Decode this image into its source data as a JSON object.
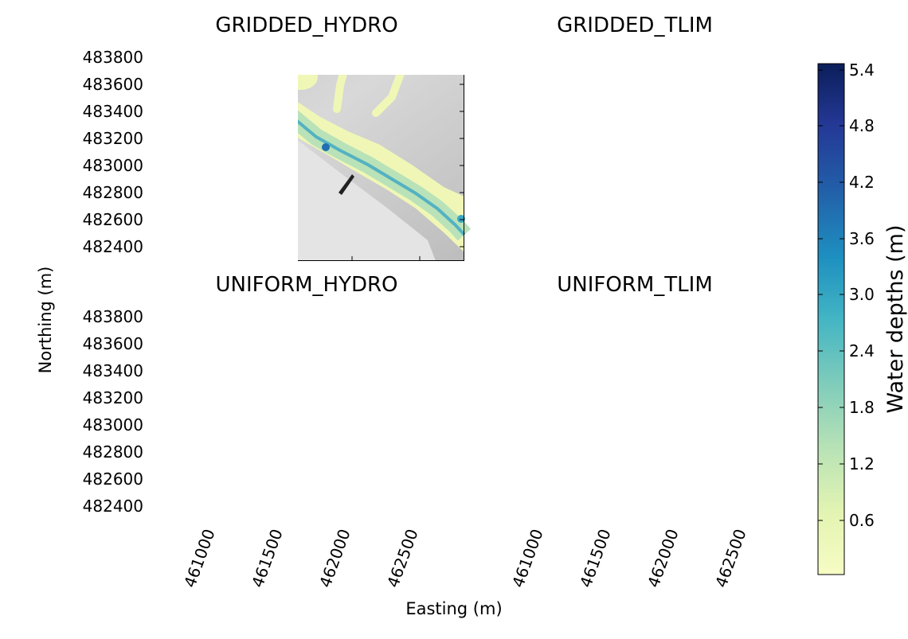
{
  "figure": {
    "xlabel": "Easting (m)",
    "ylabel": "Northing (m)",
    "colorbar": {
      "label": "Water depths (m)",
      "min": 0.0,
      "max": 5.4,
      "ticks": [
        "0.6",
        "1.2",
        "1.8",
        "2.4",
        "3.0",
        "3.6",
        "4.2",
        "4.8",
        "5.4"
      ],
      "colormap": "YlGnBu",
      "colors": [
        "#ffffd9",
        "#edf8b1",
        "#c7e9b4",
        "#7fcdbb",
        "#41b6c4",
        "#1d91c0",
        "#225ea8",
        "#253494",
        "#081d58"
      ]
    },
    "x_ticks": [
      "461000",
      "461500",
      "462000",
      "462500"
    ],
    "y_ticks": [
      "483800",
      "483600",
      "483400",
      "483200",
      "483000",
      "482800",
      "482600",
      "482400"
    ],
    "x_range": [
      460550,
      462890
    ],
    "y_range": [
      482300,
      483950
    ],
    "panels": [
      {
        "title": "GRIDDED_HYDRO"
      },
      {
        "title": "GRIDDED_TLIM"
      },
      {
        "title": "UNIFORM_HYDRO"
      },
      {
        "title": "UNIFORM_TLIM"
      }
    ],
    "colors": {
      "hillshade_light": "#d0d0d0",
      "shallow_water": "#f0f7b6",
      "medium_water": "#b9e2b8",
      "deep_water": "#3aa6c4",
      "deepest_water": "#1f6fb2"
    }
  }
}
